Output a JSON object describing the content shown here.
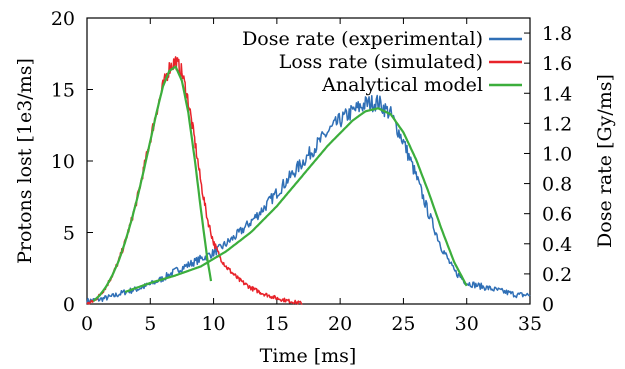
{
  "chart_data": {
    "type": "line",
    "title": "",
    "xlabel": "Time [ms]",
    "ylabel_left": "Protons lost [1e3/ms]",
    "ylabel_right": "Dose rate [Gy/ms]",
    "xlim": [
      0,
      35
    ],
    "ylim_left": [
      0,
      20
    ],
    "ylim_right": [
      0,
      1.9
    ],
    "x_ticks": [
      "0",
      "5",
      "10",
      "15",
      "20",
      "25",
      "30",
      "35"
    ],
    "y_left_ticks": [
      "0",
      "5",
      "10",
      "15",
      "20"
    ],
    "y_right_ticks": [
      "0",
      "0.2",
      "0.4",
      "0.6",
      "0.8",
      "1.0",
      "1.2",
      "1.4",
      "1.6",
      "1.8"
    ],
    "grid": false,
    "legend_position": "top-right",
    "series": [
      {
        "name": "Dose rate (experimental)",
        "color": "#2f6fb6",
        "axis": "right",
        "x": [
          0,
          1,
          2,
          3,
          4,
          5,
          6,
          7,
          8,
          9,
          10,
          11,
          12,
          13,
          14,
          15,
          16,
          17,
          18,
          19,
          20,
          21,
          22,
          23,
          24,
          25,
          26,
          27,
          28,
          29,
          30,
          31,
          32,
          33,
          34,
          35
        ],
        "y": [
          0.02,
          0.03,
          0.05,
          0.08,
          0.1,
          0.13,
          0.17,
          0.22,
          0.26,
          0.3,
          0.34,
          0.4,
          0.47,
          0.55,
          0.64,
          0.74,
          0.84,
          0.94,
          1.04,
          1.14,
          1.22,
          1.28,
          1.33,
          1.34,
          1.26,
          1.08,
          0.85,
          0.6,
          0.38,
          0.22,
          0.14,
          0.12,
          0.1,
          0.08,
          0.06,
          0.06
        ]
      },
      {
        "name": "Loss rate (simulated)",
        "color": "#e8232a",
        "axis": "left",
        "x": [
          0,
          0.5,
          1,
          1.5,
          2,
          2.5,
          3,
          3.5,
          4,
          4.5,
          5,
          5.5,
          6,
          6.5,
          7,
          7.5,
          8,
          8.5,
          9,
          9.5,
          10,
          10.5,
          11,
          12,
          13,
          14,
          15,
          16,
          17
        ],
        "y": [
          0,
          0.2,
          0.6,
          1.2,
          2.0,
          3.0,
          4.3,
          5.8,
          7.5,
          9.5,
          11.5,
          13.5,
          15.2,
          16.5,
          17.0,
          16.2,
          14.2,
          11.5,
          8.5,
          6.0,
          4.3,
          3.3,
          2.6,
          1.7,
          1.1,
          0.7,
          0.4,
          0.2,
          0.05
        ]
      },
      {
        "name": "Analytical model",
        "color": "#3cae3c",
        "axis": "left",
        "x": [
          0.5,
          1,
          1.5,
          2,
          2.5,
          3,
          3.5,
          4,
          4.5,
          5,
          5.5,
          6,
          6.5,
          7,
          7.5,
          8,
          8.5,
          9,
          9.5,
          9.8
        ],
        "y": [
          0.2,
          0.6,
          1.2,
          2.0,
          3.0,
          4.3,
          5.8,
          7.5,
          9.4,
          11.4,
          13.4,
          15.2,
          16.3,
          16.6,
          15.6,
          13.4,
          10.2,
          6.6,
          3.2,
          1.6
        ]
      },
      {
        "name": "Analytical model (dose)",
        "color": "#3cae3c",
        "axis": "right",
        "x": [
          3,
          5,
          7,
          9,
          11,
          13,
          15,
          17,
          19,
          21,
          22,
          23,
          24,
          25,
          26,
          27,
          28,
          29,
          30
        ],
        "y": [
          0.08,
          0.14,
          0.19,
          0.25,
          0.35,
          0.48,
          0.65,
          0.85,
          1.05,
          1.22,
          1.28,
          1.3,
          1.26,
          1.14,
          0.96,
          0.74,
          0.5,
          0.28,
          0.12
        ]
      }
    ]
  }
}
